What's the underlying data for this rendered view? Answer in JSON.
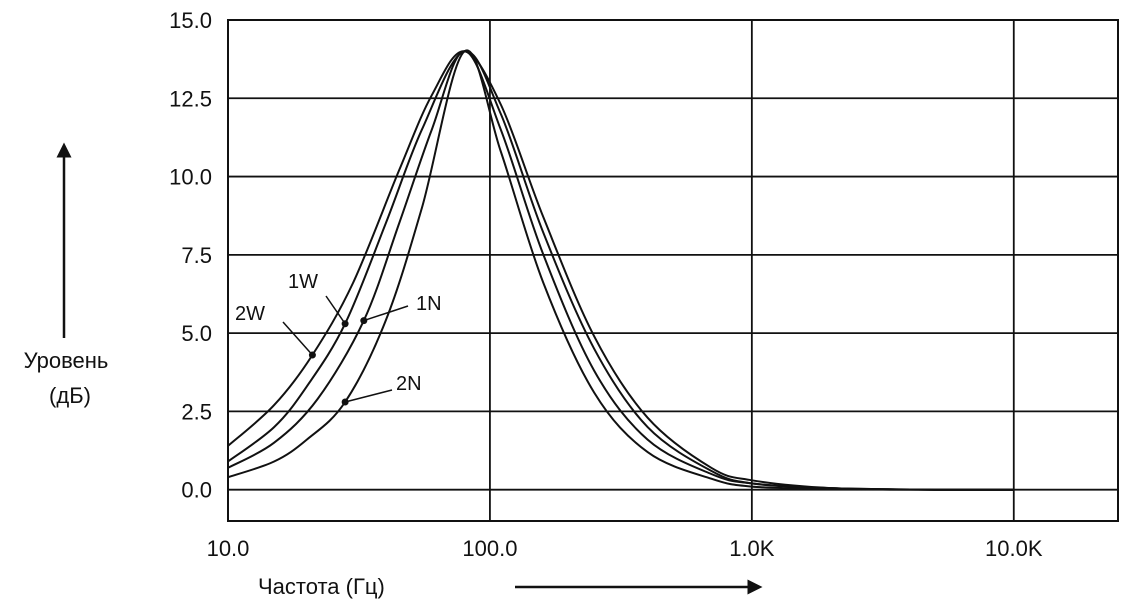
{
  "chart_data": {
    "type": "line",
    "title": "",
    "xlabel": "Частота (Гц)",
    "ylabel_line1": "Уровень",
    "ylabel_line2": "(дБ)",
    "xscale": "log",
    "xlim": [
      10,
      25000
    ],
    "ylim": [
      -1,
      15
    ],
    "xticks": [
      10,
      100,
      1000,
      10000
    ],
    "xtick_labels": [
      "10.0",
      "100.0",
      "1.0K",
      "10.0K"
    ],
    "yticks": [
      0,
      2.5,
      5,
      7.5,
      10,
      12.5,
      15
    ],
    "ytick_labels": [
      "0.0",
      "2.5",
      "5.0",
      "7.5",
      "10.0",
      "12.5",
      "15.0"
    ],
    "grid": true,
    "peak_db": 14.0,
    "peak_frequency_hz": 80,
    "series": [
      {
        "name": "2W",
        "marker_x": 21,
        "marker_y": 4.3,
        "x": [
          10,
          15,
          21,
          30,
          45,
          60,
          80,
          110,
          160,
          250,
          400,
          700,
          1000,
          2000,
          5000,
          10000
        ],
        "y": [
          1.4,
          2.7,
          4.3,
          6.6,
          10.2,
          12.6,
          14.0,
          12.3,
          8.7,
          4.9,
          2.3,
          0.7,
          0.3,
          0.05,
          0.0,
          0.0
        ]
      },
      {
        "name": "1W",
        "marker_x": 28,
        "marker_y": 5.3,
        "x": [
          10,
          15,
          20,
          28,
          40,
          55,
          80,
          110,
          160,
          250,
          400,
          700,
          1000,
          2000,
          5000,
          10000
        ],
        "y": [
          0.9,
          2.0,
          3.3,
          5.3,
          8.5,
          11.5,
          14.0,
          12.0,
          8.2,
          4.5,
          2.0,
          0.6,
          0.2,
          0.05,
          0.0,
          0.0
        ]
      },
      {
        "name": "1N",
        "marker_x": 33,
        "marker_y": 5.4,
        "x": [
          10,
          15,
          22,
          33,
          45,
          60,
          80,
          110,
          160,
          250,
          400,
          700,
          1000,
          2000,
          5000,
          10000
        ],
        "y": [
          0.7,
          1.5,
          2.9,
          5.4,
          8.5,
          11.5,
          14.0,
          11.5,
          7.5,
          3.8,
          1.6,
          0.5,
          0.2,
          0.05,
          0.0,
          0.0
        ]
      },
      {
        "name": "2N",
        "marker_x": 28,
        "marker_y": 2.8,
        "x": [
          10,
          15,
          20,
          28,
          40,
          55,
          80,
          110,
          160,
          250,
          400,
          700,
          1000,
          2000,
          5000,
          10000
        ],
        "y": [
          0.4,
          0.9,
          1.6,
          2.8,
          5.4,
          9.0,
          14.0,
          10.8,
          6.6,
          3.1,
          1.2,
          0.35,
          0.1,
          0.02,
          0.0,
          0.0
        ]
      }
    ]
  }
}
